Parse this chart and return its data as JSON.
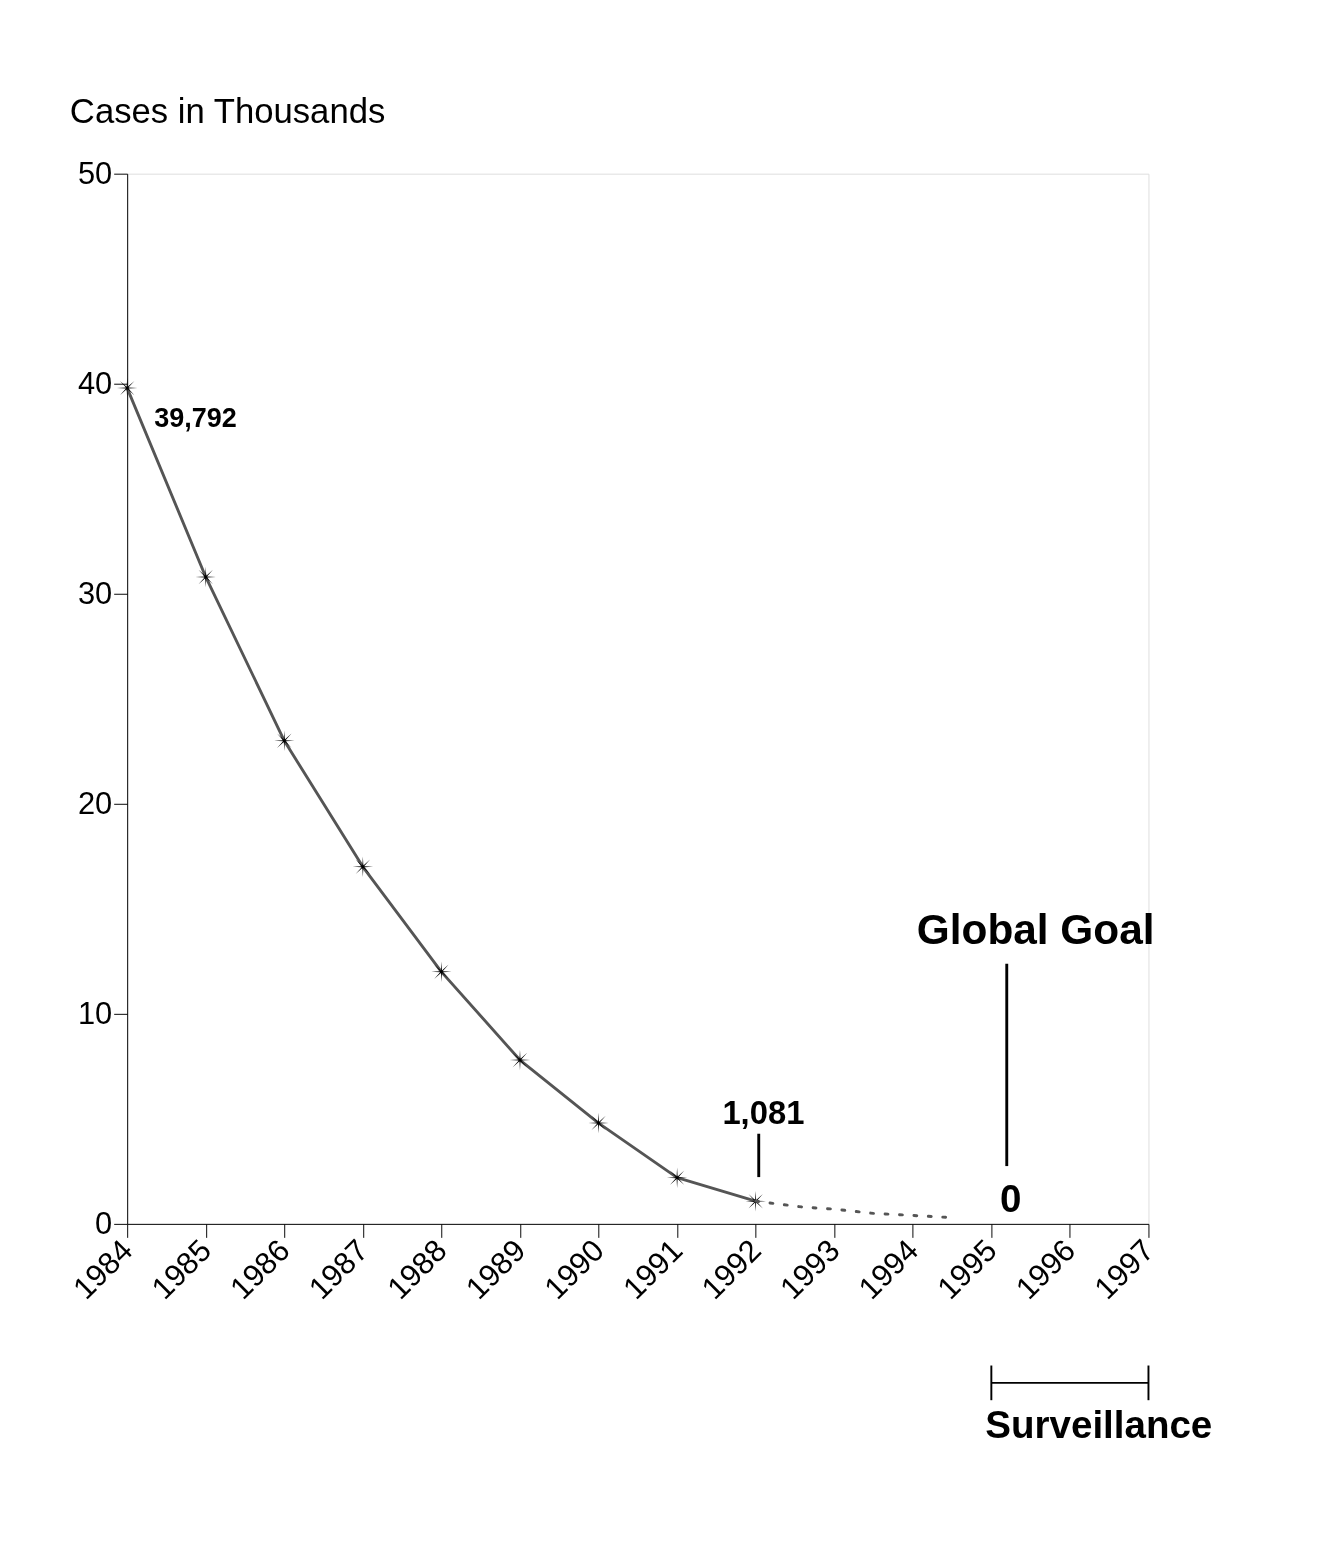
{
  "chart_data": {
    "type": "line",
    "ylabel": "Cases in Thousands",
    "xlim": [
      1984,
      1997
    ],
    "xticks": [
      1984,
      1985,
      1986,
      1987,
      1988,
      1989,
      1990,
      1991,
      1992,
      1993,
      1994,
      1995,
      1996,
      1997
    ],
    "ylim": [
      0,
      50
    ],
    "yticks": [
      0,
      10,
      20,
      30,
      40,
      50
    ],
    "grid": false,
    "series": [
      {
        "color": "#555555",
        "marker": "cross",
        "line_style": "solid",
        "x": [
          1984,
          1985,
          1986,
          1987,
          1988,
          1989,
          1990,
          1991,
          1992
        ],
        "values": [
          39.792,
          30.8,
          23.0,
          17.0,
          12.0,
          7.8,
          4.8,
          2.2,
          1.081
        ]
      },
      {
        "color": "#555555",
        "marker": "none",
        "line_style": "dotted",
        "x": [
          1992,
          1992.6,
          1993,
          1993.5,
          1994,
          1994.5
        ],
        "values": [
          1.081,
          0.8,
          0.7,
          0.5,
          0.4,
          0.3
        ]
      }
    ],
    "annotations": [
      {
        "text": "39,792",
        "x": 1984,
        "y": 39.792
      },
      {
        "text": "1,081",
        "x": 1992,
        "y": 1.081
      },
      "Global Goal",
      "0",
      "Surveillance"
    ]
  }
}
